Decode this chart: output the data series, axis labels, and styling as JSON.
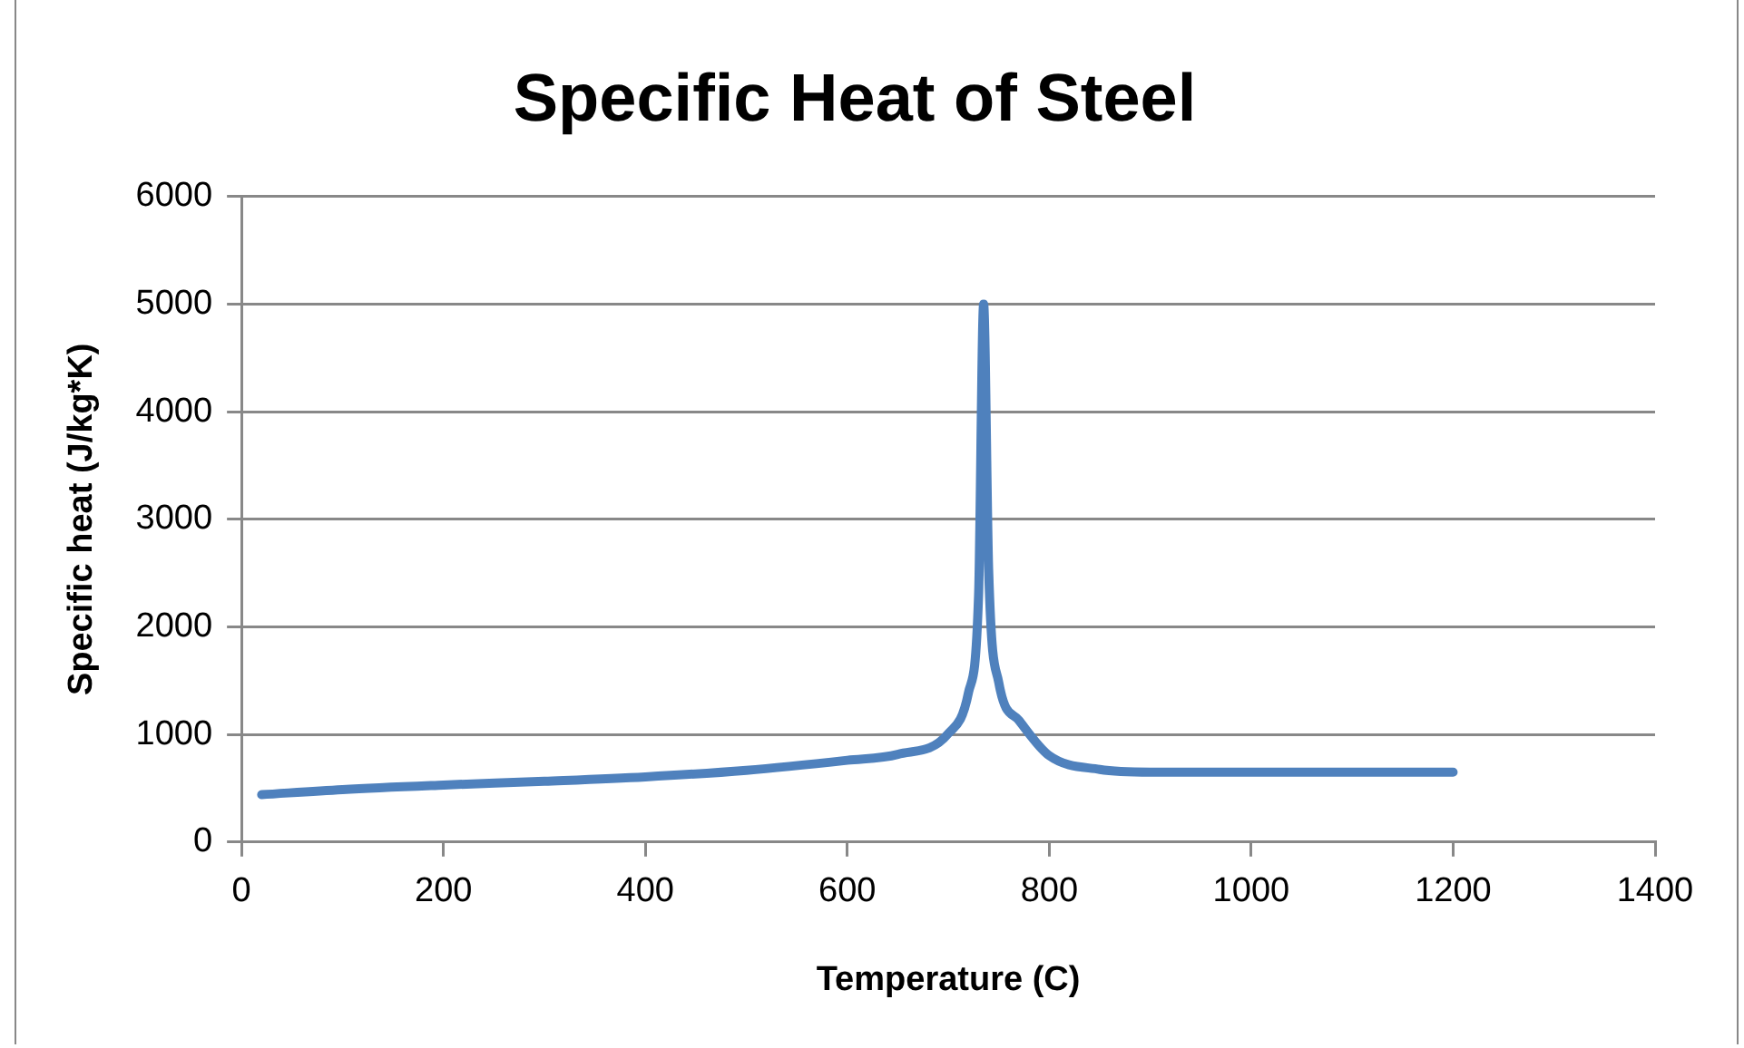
{
  "chart_data": {
    "type": "line",
    "title": "Specific Heat of Steel",
    "xlabel": "Temperature (C)",
    "ylabel": "Specific heat (J/kg*K)",
    "x": [
      20,
      100,
      200,
      300,
      400,
      500,
      600,
      650,
      700,
      720,
      730,
      735,
      740,
      750,
      770,
      800,
      850,
      900,
      1000,
      1100,
      1200
    ],
    "series": [
      {
        "color": "#4f81bd",
        "values": [
          440,
          488,
          530,
          565,
          606,
          667,
          760,
          815,
          1008,
          1388,
          2291,
          5000,
          2525,
          1483,
          1131,
          803,
          675,
          650,
          650,
          650,
          650
        ]
      }
    ],
    "xlim": [
      0,
      1400
    ],
    "xticks": [
      0,
      200,
      400,
      600,
      800,
      1000,
      1200,
      1400
    ],
    "ylim": [
      0,
      6000
    ],
    "yticks": [
      0,
      1000,
      2000,
      3000,
      4000,
      5000,
      6000
    ],
    "grid": "y",
    "legend": false,
    "marker": "none",
    "line_style": "solid"
  }
}
